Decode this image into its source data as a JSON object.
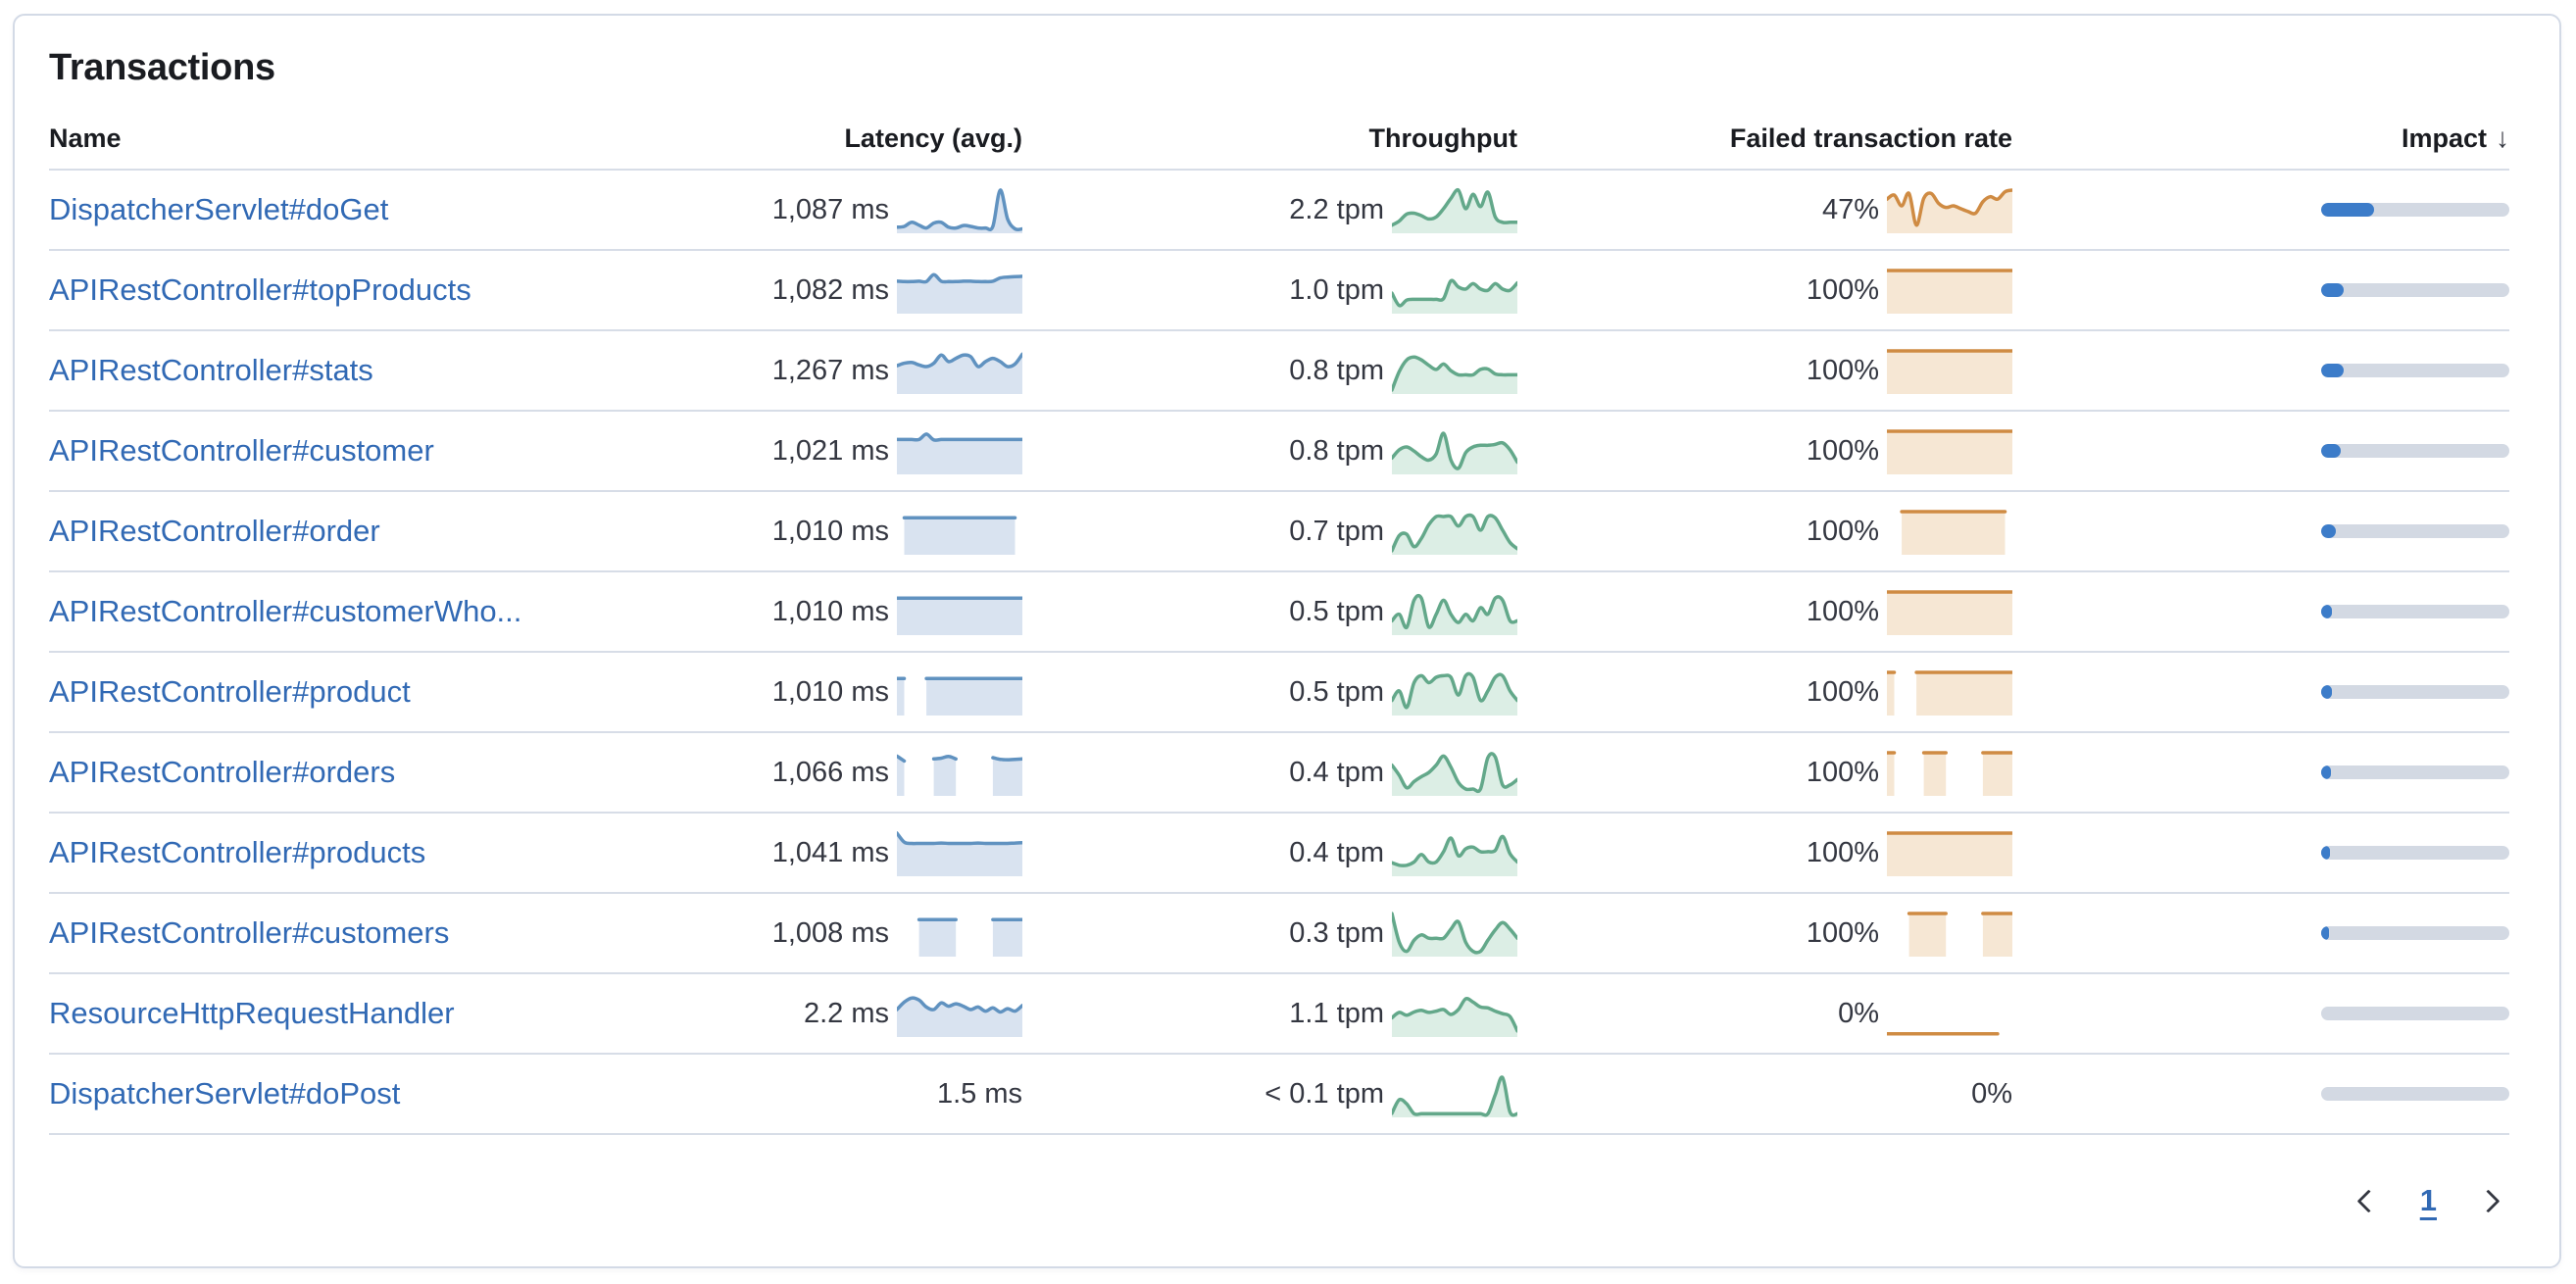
{
  "card": {
    "title": "Transactions"
  },
  "colors": {
    "link": "#3169b4",
    "heading_text": "#1a1c21",
    "body_text": "#343741",
    "border": "#d3dae6",
    "separator": "#d7dde7",
    "latency_stroke": "#6092c0",
    "latency_fill": "#d9e3f0",
    "throughput_stroke": "#63a88a",
    "throughput_fill": "#dceee5",
    "failed_stroke": "#cf8b43",
    "failed_fill": "#f6e7d4",
    "impact_fill": "#3c7cc9",
    "impact_track": "#d3d9e3"
  },
  "table": {
    "columns": {
      "name": "Name",
      "latency": "Latency (avg.)",
      "throughput": "Throughput",
      "failed": "Failed transaction rate",
      "impact": "Impact"
    },
    "sort": {
      "column": "impact",
      "direction": "desc",
      "icon": "arrow-down",
      "glyph": "↓"
    },
    "rows": [
      {
        "name": "DispatcherServlet#doGet",
        "latency": "1,087 ms",
        "throughput": "2.2 tpm",
        "failed_rate": "47%",
        "impact_pct": 28,
        "latency_spark": {
          "fill": true,
          "points": [
            0.1,
            0.12,
            0.22,
            0.15,
            0.08,
            0.2,
            0.22,
            0.1,
            0.08,
            0.14,
            0.12,
            0.08,
            0.08,
            0.12,
            1.0,
            0.3,
            0.06,
            0.06
          ]
        },
        "throughput_spark": {
          "fill": true,
          "points": [
            0.15,
            0.25,
            0.42,
            0.44,
            0.38,
            0.3,
            0.35,
            0.55,
            0.8,
            1.0,
            0.55,
            0.9,
            0.6,
            0.95,
            0.35,
            0.22,
            0.22,
            0.22
          ]
        },
        "failed_spark": {
          "fill": true,
          "points": [
            0.78,
            0.88,
            0.62,
            0.92,
            0.15,
            0.8,
            0.92,
            0.68,
            0.58,
            0.62,
            0.55,
            0.48,
            0.44,
            0.72,
            0.84,
            0.78,
            0.96,
            1.0
          ]
        }
      },
      {
        "name": "APIRestController#topProducts",
        "latency": "1,082 ms",
        "throughput": "1.0 tpm",
        "failed_rate": "100%",
        "impact_pct": 12,
        "latency_spark": {
          "fill": true,
          "points": [
            0.74,
            0.73,
            0.73,
            0.74,
            0.73,
            0.9,
            0.74,
            0.73,
            0.73,
            0.74,
            0.74,
            0.73,
            0.73,
            0.74,
            0.82,
            0.84,
            0.85,
            0.86
          ]
        },
        "throughput_spark": {
          "fill": true,
          "points": [
            0.45,
            0.15,
            0.28,
            0.3,
            0.3,
            0.3,
            0.3,
            0.32,
            0.75,
            0.6,
            0.55,
            0.68,
            0.55,
            0.52,
            0.68,
            0.55,
            0.52,
            0.7
          ]
        },
        "failed_spark": {
          "fill": true,
          "points": [
            1,
            1,
            1,
            1,
            1,
            1,
            1,
            1,
            1,
            1,
            1,
            1,
            1,
            1,
            1,
            1,
            1,
            1
          ]
        }
      },
      {
        "name": "APIRestController#stats",
        "latency": "1,267 ms",
        "throughput": "0.8 tpm",
        "failed_rate": "100%",
        "impact_pct": 12,
        "latency_spark": {
          "fill": true,
          "points": [
            0.64,
            0.7,
            0.72,
            0.66,
            0.62,
            0.7,
            0.9,
            0.74,
            0.82,
            0.9,
            0.86,
            0.62,
            0.74,
            0.82,
            0.74,
            0.62,
            0.68,
            0.92
          ]
        },
        "throughput_spark": {
          "fill": true,
          "points": [
            0.05,
            0.5,
            0.78,
            0.85,
            0.78,
            0.65,
            0.55,
            0.68,
            0.52,
            0.42,
            0.42,
            0.42,
            0.55,
            0.56,
            0.44,
            0.42,
            0.42,
            0.42
          ]
        },
        "failed_spark": {
          "fill": true,
          "points": [
            1,
            1,
            1,
            1,
            1,
            1,
            1,
            1,
            1,
            1,
            1,
            1,
            1,
            1,
            1,
            1,
            1,
            1
          ]
        }
      },
      {
        "name": "APIRestController#customer",
        "latency": "1,021 ms",
        "throughput": "0.8 tpm",
        "failed_rate": "100%",
        "impact_pct": 10.5,
        "latency_spark": {
          "fill": true,
          "points": [
            0.8,
            0.8,
            0.8,
            0.8,
            0.93,
            0.79,
            0.8,
            0.8,
            0.8,
            0.8,
            0.8,
            0.8,
            0.8,
            0.8,
            0.8,
            0.8,
            0.8,
            0.8
          ]
        },
        "throughput_spark": {
          "fill": true,
          "points": [
            0.35,
            0.55,
            0.62,
            0.52,
            0.38,
            0.3,
            0.45,
            0.95,
            0.3,
            0.1,
            0.48,
            0.62,
            0.66,
            0.66,
            0.68,
            0.72,
            0.55,
            0.25
          ]
        },
        "failed_spark": {
          "fill": true,
          "points": [
            1,
            1,
            1,
            1,
            1,
            1,
            1,
            1,
            1,
            1,
            1,
            1,
            1,
            1,
            1,
            1,
            1,
            1
          ]
        }
      },
      {
        "name": "APIRestController#order",
        "latency": "1,010 ms",
        "throughput": "0.7 tpm",
        "failed_rate": "100%",
        "impact_pct": 8,
        "latency_spark": {
          "fill": true,
          "points": [
            null,
            0.85,
            0.85,
            0.85,
            0.85,
            0.85,
            0.85,
            0.85,
            0.85,
            0.85,
            0.85,
            0.85,
            0.85,
            0.85,
            0.85,
            0.85,
            0.85,
            null
          ]
        },
        "throughput_spark": {
          "fill": true,
          "points": [
            0.05,
            0.42,
            0.45,
            0.15,
            0.35,
            0.68,
            0.88,
            0.88,
            0.88,
            0.65,
            0.88,
            0.88,
            0.55,
            0.88,
            0.85,
            0.55,
            0.25,
            0.1
          ]
        },
        "failed_spark": {
          "fill": true,
          "points": [
            null,
            null,
            1,
            1,
            1,
            1,
            1,
            1,
            1,
            1,
            1,
            1,
            1,
            1,
            1,
            1,
            1,
            null
          ]
        }
      },
      {
        "name": "APIRestController#customerWho...",
        "latency": "1,010 ms",
        "throughput": "0.5 tpm",
        "failed_rate": "100%",
        "impact_pct": 5.7,
        "latency_spark": {
          "fill": true,
          "points": [
            0.85,
            0.85,
            0.85,
            0.85,
            0.85,
            0.85,
            0.85,
            0.85,
            0.85,
            0.85,
            0.85,
            0.85,
            0.85,
            0.85,
            0.85,
            0.85,
            0.85,
            0.85
          ]
        },
        "throughput_spark": {
          "fill": true,
          "points": [
            0.3,
            0.46,
            0.14,
            0.8,
            0.85,
            0.15,
            0.46,
            0.8,
            0.46,
            0.26,
            0.46,
            0.3,
            0.62,
            0.46,
            0.85,
            0.8,
            0.3,
            0.3
          ]
        },
        "failed_spark": {
          "fill": true,
          "points": [
            1,
            1,
            1,
            1,
            1,
            1,
            1,
            1,
            1,
            1,
            1,
            1,
            1,
            1,
            1,
            1,
            1,
            1
          ]
        }
      },
      {
        "name": "APIRestController#product",
        "latency": "1,010 ms",
        "throughput": "0.5 tpm",
        "failed_rate": "100%",
        "impact_pct": 5.5,
        "latency_spark": {
          "fill": true,
          "points": [
            0.85,
            0.85,
            null,
            null,
            0.85,
            0.85,
            0.85,
            0.85,
            0.85,
            0.85,
            0.85,
            0.85,
            0.85,
            0.85,
            0.85,
            0.85,
            0.85,
            0.85
          ]
        },
        "throughput_spark": {
          "fill": true,
          "points": [
            0.32,
            0.55,
            0.15,
            0.75,
            0.92,
            0.75,
            0.88,
            0.92,
            0.88,
            0.45,
            0.92,
            0.88,
            0.32,
            0.55,
            0.88,
            0.92,
            0.55,
            0.32
          ]
        },
        "failed_spark": {
          "fill": true,
          "points": [
            1,
            1,
            null,
            null,
            1,
            1,
            1,
            1,
            1,
            1,
            1,
            1,
            1,
            1,
            1,
            1,
            1,
            1
          ]
        }
      },
      {
        "name": "APIRestController#orders",
        "latency": "1,066 ms",
        "throughput": "0.4 tpm",
        "failed_rate": "100%",
        "impact_pct": 5.2,
        "latency_spark": {
          "fill": true,
          "points": [
            0.92,
            0.8,
            null,
            null,
            null,
            0.85,
            0.87,
            0.91,
            0.85,
            null,
            null,
            null,
            null,
            0.88,
            0.84,
            0.83,
            0.84,
            0.85
          ]
        },
        "throughput_spark": {
          "fill": true,
          "points": [
            0.7,
            0.45,
            0.15,
            0.3,
            0.42,
            0.52,
            0.7,
            0.92,
            0.65,
            0.28,
            0.12,
            0.12,
            0.12,
            0.88,
            0.9,
            0.22,
            0.22,
            0.35
          ]
        },
        "failed_spark": {
          "fill": true,
          "points": [
            1,
            1,
            null,
            null,
            null,
            1,
            1,
            1,
            1,
            null,
            null,
            null,
            null,
            1,
            1,
            1,
            1,
            1
          ]
        }
      },
      {
        "name": "APIRestController#products",
        "latency": "1,041 ms",
        "throughput": "0.4 tpm",
        "failed_rate": "100%",
        "impact_pct": 4.9,
        "latency_spark": {
          "fill": true,
          "points": [
            1.0,
            0.78,
            0.75,
            0.75,
            0.75,
            0.75,
            0.76,
            0.75,
            0.75,
            0.75,
            0.75,
            0.76,
            0.75,
            0.75,
            0.75,
            0.75,
            0.76,
            0.77
          ]
        },
        "throughput_spark": {
          "fill": true,
          "points": [
            0.28,
            0.22,
            0.22,
            0.3,
            0.48,
            0.3,
            0.3,
            0.55,
            0.88,
            0.45,
            0.62,
            0.66,
            0.55,
            0.55,
            0.58,
            0.92,
            0.5,
            0.3
          ]
        },
        "failed_spark": {
          "fill": true,
          "points": [
            1,
            1,
            1,
            1,
            1,
            1,
            1,
            1,
            1,
            1,
            1,
            1,
            1,
            1,
            1,
            1,
            1,
            1
          ]
        }
      },
      {
        "name": "APIRestController#customers",
        "latency": "1,008 ms",
        "throughput": "0.3 tpm",
        "failed_rate": "100%",
        "impact_pct": 4.3,
        "latency_spark": {
          "fill": true,
          "points": [
            null,
            null,
            null,
            0.85,
            0.85,
            0.85,
            0.85,
            0.85,
            0.85,
            null,
            null,
            null,
            null,
            0.85,
            0.85,
            0.85,
            0.85,
            0.85
          ]
        },
        "throughput_spark": {
          "fill": true,
          "points": [
            1.0,
            0.3,
            0.08,
            0.35,
            0.48,
            0.4,
            0.4,
            0.4,
            0.62,
            0.8,
            0.3,
            0.08,
            0.08,
            0.35,
            0.6,
            0.78,
            0.62,
            0.4
          ]
        },
        "failed_spark": {
          "fill": true,
          "points": [
            null,
            null,
            null,
            1,
            1,
            1,
            1,
            1,
            1,
            null,
            null,
            null,
            null,
            1,
            1,
            1,
            1,
            1
          ]
        }
      },
      {
        "name": "ResourceHttpRequestHandler",
        "latency": "2.2 ms",
        "throughput": "1.1 tpm",
        "failed_rate": "0%",
        "impact_pct": 0,
        "latency_spark": {
          "fill": true,
          "points": [
            0.62,
            0.8,
            0.9,
            0.85,
            0.68,
            0.62,
            0.78,
            0.7,
            0.76,
            0.7,
            0.62,
            0.68,
            0.58,
            0.66,
            0.56,
            0.64,
            0.58,
            0.72
          ]
        },
        "throughput_spark": {
          "fill": true,
          "points": [
            0.42,
            0.55,
            0.48,
            0.56,
            0.6,
            0.55,
            0.58,
            0.62,
            0.5,
            0.62,
            0.88,
            0.8,
            0.68,
            0.66,
            0.58,
            0.52,
            0.45,
            0.1
          ]
        },
        "failed_spark": {
          "fill": false,
          "points": [
            0.03,
            0.03,
            0.03,
            0.03,
            0.03,
            0.03,
            0.03,
            0.03,
            0.03,
            0.03,
            0.03,
            0.03,
            0.03,
            0.03,
            0.03,
            0.03,
            null,
            null
          ]
        }
      },
      {
        "name": "DispatcherServlet#doPost",
        "latency": "1.5 ms",
        "throughput": "< 0.1 tpm",
        "failed_rate": "0%",
        "impact_pct": 0,
        "latency_spark": null,
        "throughput_spark": {
          "fill": true,
          "points": [
            0.05,
            0.38,
            0.28,
            0.04,
            0.04,
            0.04,
            0.04,
            0.04,
            0.04,
            0.04,
            0.04,
            0.04,
            0.04,
            0.04,
            0.5,
            0.92,
            0.08,
            0.04
          ]
        },
        "failed_spark": null
      }
    ]
  },
  "pagination": {
    "current_page": "1",
    "prev_icon": "chevron-left",
    "next_icon": "chevron-right"
  }
}
